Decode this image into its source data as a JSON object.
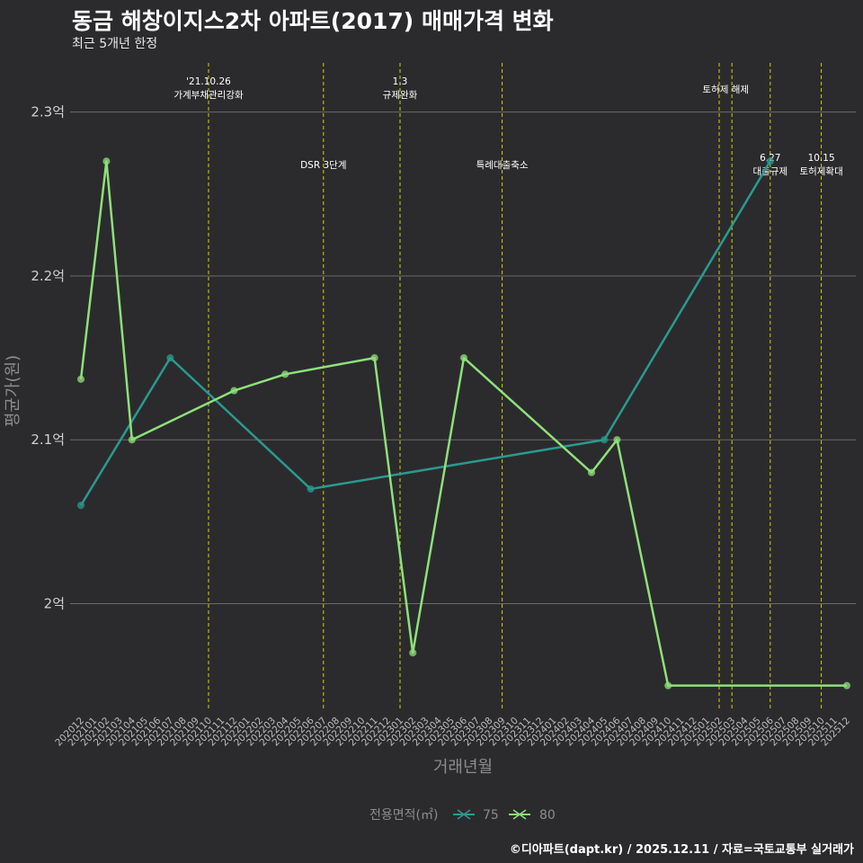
{
  "page": {
    "title": "동금 해창이지스2차 아파트(2017) 매매가격 변화",
    "subtitle": "최근 5개년 한정",
    "caption": "©디아파트(dapt.kr) / 2025.12.11 / 자료=국토교통부 실거래가"
  },
  "chart_data": {
    "type": "line",
    "title": "동금 해창이지스2차 아파트(2017) 매매가격 변화",
    "xlabel": "거래년월",
    "ylabel": "평균가(원)",
    "ylim": [
      1.935,
      2.33
    ],
    "y_ticks": [
      2.0,
      2.1,
      2.2,
      2.3
    ],
    "y_tick_labels": [
      "2억",
      "2.1억",
      "2.2억",
      "2.3억"
    ],
    "categories": [
      "202012",
      "202101",
      "202102",
      "202103",
      "202104",
      "202105",
      "202106",
      "202107",
      "202108",
      "202109",
      "202110",
      "202111",
      "202112",
      "202201",
      "202202",
      "202203",
      "202204",
      "202205",
      "202206",
      "202207",
      "202208",
      "202209",
      "202210",
      "202211",
      "202212",
      "202301",
      "202302",
      "202303",
      "202304",
      "202305",
      "202306",
      "202307",
      "202308",
      "202309",
      "202310",
      "202311",
      "202312",
      "202401",
      "202402",
      "202403",
      "202404",
      "202405",
      "202406",
      "202407",
      "202408",
      "202409",
      "202410",
      "202411",
      "202412",
      "202501",
      "202502",
      "202503",
      "202504",
      "202505",
      "202506",
      "202507",
      "202508",
      "202509",
      "202510",
      "202511",
      "202512"
    ],
    "legend_title": "전용면적(㎡)",
    "series": [
      {
        "name": "75",
        "color": "#2a9a8f",
        "points": [
          {
            "x": "202012",
            "y": 2.06
          },
          {
            "x": "202107",
            "y": 2.15
          },
          {
            "x": "202206",
            "y": 2.07
          },
          {
            "x": "202405",
            "y": 2.1
          },
          {
            "x": "202506",
            "y": 2.27
          }
        ]
      },
      {
        "name": "80",
        "color": "#8ee07a",
        "points": [
          {
            "x": "202012",
            "y": 2.137
          },
          {
            "x": "202102",
            "y": 2.27
          },
          {
            "x": "202104",
            "y": 2.1
          },
          {
            "x": "202112",
            "y": 2.13
          },
          {
            "x": "202204",
            "y": 2.14
          },
          {
            "x": "202211",
            "y": 2.15
          },
          {
            "x": "202302",
            "y": 1.97
          },
          {
            "x": "202306",
            "y": 2.15
          },
          {
            "x": "202404",
            "y": 2.08
          },
          {
            "x": "202406",
            "y": 2.1
          },
          {
            "x": "202410",
            "y": 1.95
          },
          {
            "x": "202512",
            "y": 1.95
          }
        ]
      }
    ],
    "events": [
      {
        "x": 10.0,
        "lines": [
          "'21.10.26",
          "가계부채관리강화"
        ],
        "row": "top"
      },
      {
        "x": 19.0,
        "lines": [
          "DSR 3단계"
        ],
        "row": "mid"
      },
      {
        "x": 25.0,
        "lines": [
          "1.3",
          "규제완화"
        ],
        "row": "top"
      },
      {
        "x": 33.0,
        "lines": [
          "특례대출축소"
        ],
        "row": "mid"
      },
      {
        "x": 50.0,
        "lines": [],
        "row": "none"
      },
      {
        "x": 51.0,
        "lines": [
          "토허제 해제"
        ],
        "row": "top-center"
      },
      {
        "x": 54.0,
        "lines": [
          "6.27",
          "대출규제"
        ],
        "row": "mid"
      },
      {
        "x": 58.0,
        "lines": [
          "10.15",
          "토허제확대"
        ],
        "row": "mid"
      }
    ]
  },
  "colors": {
    "background": "#2b2b2d",
    "grid": "#6b6b6b",
    "event_line": "#d4d400"
  }
}
